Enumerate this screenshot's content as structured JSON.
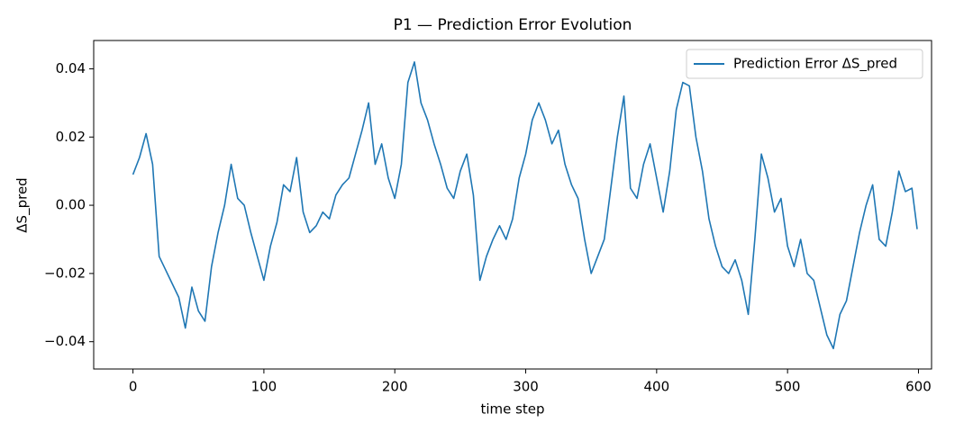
{
  "chart_data": {
    "type": "line",
    "title": "P1 — Prediction Error Evolution",
    "xlabel": "time step",
    "ylabel": "ΔS_pred",
    "x": [
      0,
      5,
      10,
      15,
      20,
      25,
      30,
      35,
      40,
      45,
      50,
      55,
      60,
      65,
      70,
      75,
      80,
      85,
      90,
      95,
      100,
      105,
      110,
      115,
      120,
      125,
      130,
      135,
      140,
      145,
      150,
      155,
      160,
      165,
      170,
      175,
      180,
      185,
      190,
      195,
      200,
      205,
      210,
      215,
      220,
      225,
      230,
      235,
      240,
      245,
      250,
      255,
      260,
      265,
      270,
      275,
      280,
      285,
      290,
      295,
      300,
      305,
      310,
      315,
      320,
      325,
      330,
      335,
      340,
      345,
      350,
      355,
      360,
      365,
      370,
      375,
      380,
      385,
      390,
      395,
      400,
      405,
      410,
      415,
      420,
      425,
      430,
      435,
      440,
      445,
      450,
      455,
      460,
      465,
      470,
      475,
      480,
      485,
      490,
      495,
      500,
      505,
      510,
      515,
      520,
      525,
      530,
      535,
      540,
      545,
      550,
      555,
      560,
      565,
      570,
      575,
      580,
      585,
      590,
      595,
      599
    ],
    "series": [
      {
        "name": "Prediction Error ΔS_pred",
        "color": "#1f77b4",
        "values": [
          0.009,
          0.014,
          0.021,
          0.012,
          -0.015,
          -0.019,
          -0.023,
          -0.027,
          -0.036,
          -0.024,
          -0.031,
          -0.034,
          -0.018,
          -0.008,
          0.0,
          0.012,
          0.002,
          0.0,
          -0.008,
          -0.015,
          -0.022,
          -0.012,
          -0.005,
          0.006,
          0.004,
          0.014,
          -0.002,
          -0.008,
          -0.006,
          -0.002,
          -0.004,
          0.003,
          0.006,
          0.008,
          0.015,
          0.022,
          0.03,
          0.012,
          0.018,
          0.008,
          0.002,
          0.012,
          0.036,
          0.042,
          0.03,
          0.025,
          0.018,
          0.012,
          0.005,
          0.002,
          0.01,
          0.015,
          0.003,
          -0.022,
          -0.015,
          -0.01,
          -0.006,
          -0.01,
          -0.004,
          0.008,
          0.015,
          0.025,
          0.03,
          0.025,
          0.018,
          0.022,
          0.012,
          0.006,
          0.002,
          -0.01,
          -0.02,
          -0.015,
          -0.01,
          0.005,
          0.02,
          0.032,
          0.005,
          0.002,
          0.012,
          0.018,
          0.008,
          -0.002,
          0.01,
          0.028,
          0.036,
          0.035,
          0.02,
          0.01,
          -0.004,
          -0.012,
          -0.018,
          -0.02,
          -0.016,
          -0.022,
          -0.032,
          -0.01,
          0.015,
          0.008,
          -0.002,
          0.002,
          -0.012,
          -0.018,
          -0.01,
          -0.02,
          -0.022,
          -0.03,
          -0.038,
          -0.042,
          -0.032,
          -0.028,
          -0.018,
          -0.008,
          0.0,
          0.006,
          -0.01,
          -0.012,
          -0.002,
          0.01,
          0.004,
          0.005,
          -0.007
        ]
      }
    ],
    "xlim": [
      -30,
      610
    ],
    "ylim": [
      -0.048,
      0.0483
    ],
    "xticks": [
      0,
      100,
      200,
      300,
      400,
      500,
      600
    ],
    "yticks": [
      {
        "value": -0.04,
        "label": "−0.04"
      },
      {
        "value": -0.02,
        "label": "−0.02"
      },
      {
        "value": 0,
        "label": "0.00"
      },
      {
        "value": 0.02,
        "label": "0.02"
      },
      {
        "value": 0.04,
        "label": "0.04"
      }
    ],
    "grid": false,
    "legend": "upper right"
  }
}
